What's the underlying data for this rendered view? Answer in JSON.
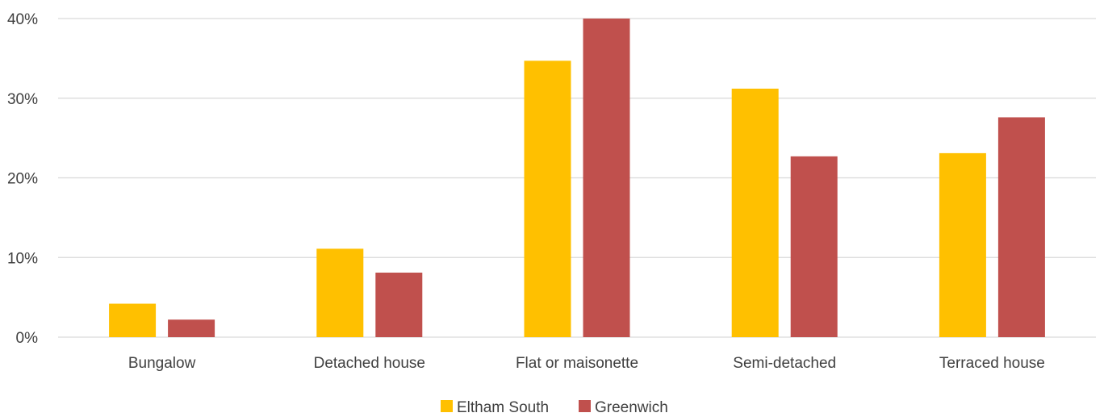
{
  "chart_data": {
    "type": "bar",
    "title": "",
    "xlabel": "",
    "ylabel": "",
    "categories": [
      "Bungalow",
      "Detached house",
      "Flat or maisonette",
      "Semi-detached",
      "Terraced house"
    ],
    "series": [
      {
        "name": "Eltham South",
        "color": "#FFC000",
        "values": [
          4.2,
          11.1,
          34.7,
          31.2,
          23.1
        ]
      },
      {
        "name": "Greenwich",
        "color": "#C0504D",
        "values": [
          2.2,
          8.1,
          40.0,
          22.7,
          27.6
        ]
      }
    ],
    "ylim": [
      0,
      40
    ],
    "yticks": [
      0,
      10,
      20,
      30,
      40
    ],
    "ytick_labels": [
      "0%",
      "10%",
      "20%",
      "30%",
      "40%"
    ],
    "grid": true,
    "legend_position": "bottom-center"
  }
}
